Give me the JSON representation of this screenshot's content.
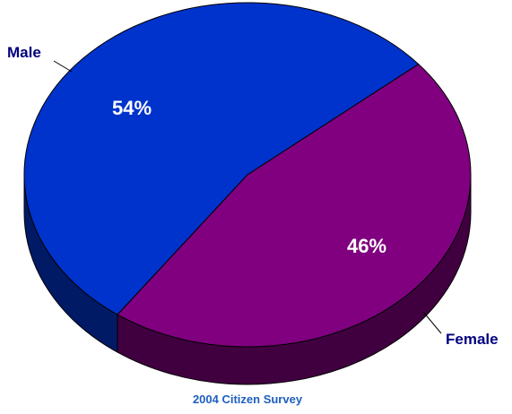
{
  "chart_data": {
    "type": "pie",
    "style": "3d",
    "title": "",
    "caption": "2004 Citizen Survey",
    "legend": "none",
    "slices": [
      {
        "label": "Male",
        "value": 54,
        "value_label": "54%",
        "color": "#0033cc",
        "side_color": "#001a66"
      },
      {
        "label": "Female",
        "value": 46,
        "value_label": "46%",
        "color": "#800080",
        "side_color": "#400040"
      }
    ],
    "label_color": "#000080",
    "value_label_color": "#ffffff"
  }
}
